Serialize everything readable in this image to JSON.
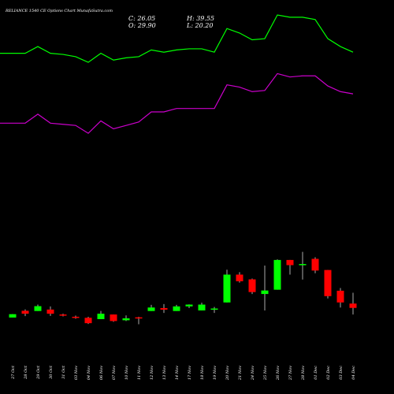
{
  "header": {
    "title": "RELIANCE 1540  CE Options  Chart MunafaSutra.com",
    "close": "C: 26.05",
    "high": "H: 39.55",
    "open": "O: 29.90",
    "low": "L: 20.20"
  },
  "colors": {
    "background": "#000000",
    "bullish": "#00ff00",
    "bearish": "#ff0000",
    "wick": "#aaaaaa",
    "upper_line": "#00ff00",
    "lower_line": "#cc00cc",
    "text": "#ffffff"
  },
  "chart_data": {
    "type": "candlestick",
    "title": "RELIANCE 1540  CE Options  Chart MunafaSutra.com",
    "categories": [
      "27 Oct",
      "28 Oct",
      "29 Oct",
      "30 Oct",
      "31 Oct",
      "03 Nov",
      "04 Nov",
      "06 Nov",
      "07 Nov",
      "10 Nov",
      "11 Nov",
      "12 Nov",
      "13 Nov",
      "14 Nov",
      "17 Nov",
      "18 Nov",
      "19 Nov",
      "20 Nov",
      "21 Nov",
      "24 Nov",
      "25 Nov",
      "26 Nov",
      "27 Nov",
      "28 Nov",
      "01 Dec",
      "02 Dec",
      "03 Dec",
      "04 Dec"
    ],
    "candles": [
      {
        "o": 17.5,
        "h": 20.5,
        "l": 17.5,
        "c": 20.5
      },
      {
        "o": 23.5,
        "h": 24.7,
        "l": 18.8,
        "c": 20.9
      },
      {
        "o": 23.3,
        "h": 29.0,
        "l": 23.3,
        "c": 27.6
      },
      {
        "o": 24.6,
        "h": 27.4,
        "l": 19.0,
        "c": 20.9
      },
      {
        "o": 20.2,
        "h": 20.9,
        "l": 18.5,
        "c": 19.7
      },
      {
        "o": 18.2,
        "h": 19.2,
        "l": 16.4,
        "c": 17.5
      },
      {
        "o": 17.3,
        "h": 18.2,
        "l": 11.8,
        "c": 12.5
      },
      {
        "o": 16.1,
        "h": 23.3,
        "l": 16.1,
        "c": 20.9
      },
      {
        "o": 20.2,
        "h": 20.2,
        "l": 13.7,
        "c": 14.4
      },
      {
        "o": 15.1,
        "h": 19.4,
        "l": 14.4,
        "c": 16.8
      },
      {
        "o": 17.7,
        "h": 18.2,
        "l": 11.5,
        "c": 17.5
      },
      {
        "o": 23.3,
        "h": 28.8,
        "l": 23.3,
        "c": 26.4
      },
      {
        "o": 25.9,
        "h": 29.5,
        "l": 21.6,
        "c": 24.5
      },
      {
        "o": 23.3,
        "h": 28.8,
        "l": 23.3,
        "c": 27.4
      },
      {
        "o": 27.4,
        "h": 29.2,
        "l": 25.9,
        "c": 29.0
      },
      {
        "o": 23.8,
        "h": 30.7,
        "l": 23.8,
        "c": 29.0
      },
      {
        "o": 25.0,
        "h": 26.9,
        "l": 21.6,
        "c": 25.5
      },
      {
        "o": 30.9,
        "h": 60.0,
        "l": 30.9,
        "c": 55.6
      },
      {
        "o": 55.6,
        "h": 57.8,
        "l": 48.5,
        "c": 49.7
      },
      {
        "o": 51.4,
        "h": 52.1,
        "l": 38.4,
        "c": 40.1
      },
      {
        "o": 38.4,
        "h": 63.6,
        "l": 23.8,
        "c": 41.5
      },
      {
        "o": 42.2,
        "h": 69.1,
        "l": 42.2,
        "c": 68.6
      },
      {
        "o": 68.6,
        "h": 68.6,
        "l": 55.6,
        "c": 64.0
      },
      {
        "o": 64.2,
        "h": 75.8,
        "l": 51.2,
        "c": 65.0
      },
      {
        "o": 69.6,
        "h": 71.0,
        "l": 56.8,
        "c": 59.2
      },
      {
        "o": 59.7,
        "h": 59.7,
        "l": 34.4,
        "c": 36.5
      },
      {
        "o": 41.3,
        "h": 43.7,
        "l": 26.4,
        "c": 30.9
      },
      {
        "o": 29.9,
        "h": 39.55,
        "l": 20.2,
        "c": 26.05
      }
    ],
    "upper_line": [
      252,
      252,
      258,
      252,
      251,
      249,
      244,
      252,
      246,
      248,
      249,
      255,
      253,
      255,
      256,
      256,
      253,
      274,
      270,
      264,
      265,
      286,
      284,
      284,
      282,
      265,
      258,
      253
    ],
    "lower_line": [
      190,
      190,
      198,
      190,
      189,
      188,
      181,
      192,
      185,
      188,
      191,
      200,
      200,
      203,
      203,
      203,
      203,
      224,
      222,
      218,
      219,
      234,
      231,
      232,
      232,
      223,
      218,
      216
    ],
    "ylim": [
      0,
      300
    ],
    "grid": false
  }
}
